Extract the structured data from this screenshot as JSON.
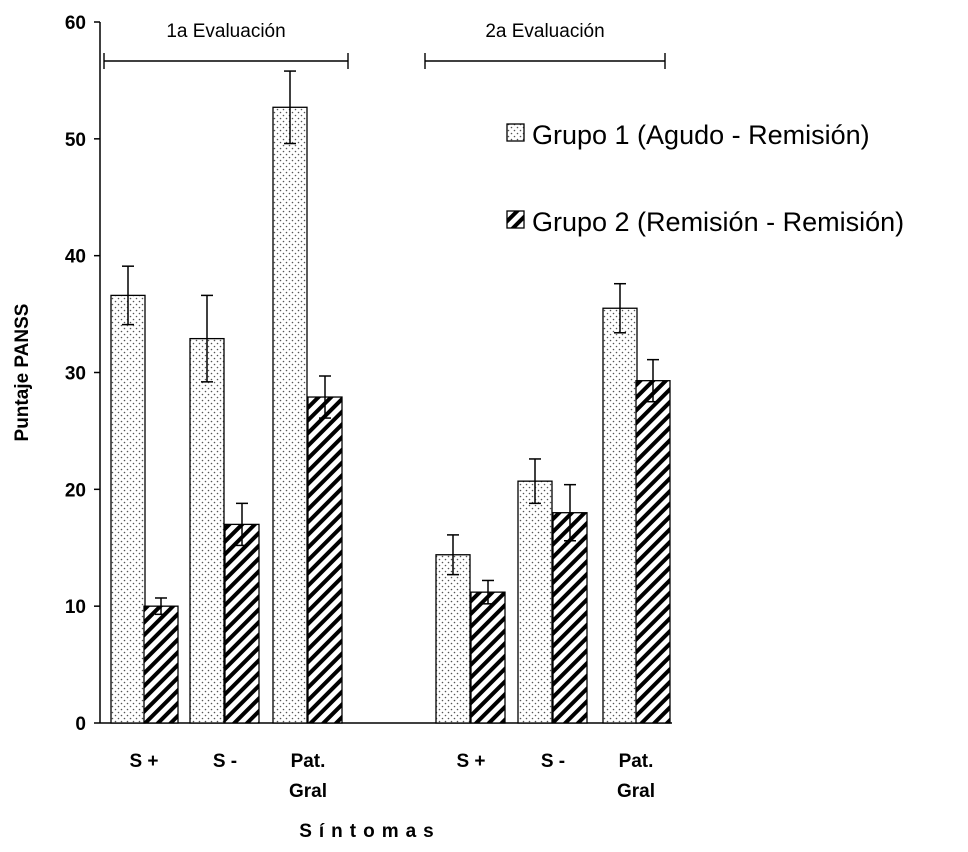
{
  "chart_data": {
    "type": "bar",
    "title": "",
    "ylabel": "Puntaje PANSS",
    "xlabel": "Síntomas",
    "ylim": [
      0,
      60
    ],
    "yticks": [
      0,
      10,
      20,
      30,
      40,
      50,
      60
    ],
    "groups": [
      {
        "label": "1a Evaluación",
        "categories": [
          "S +",
          "S -",
          "Pat.\nGral"
        ]
      },
      {
        "label": "2a Evaluación",
        "categories": [
          "S +",
          "S -",
          "Pat.\nGral"
        ]
      }
    ],
    "series": [
      {
        "name": "Grupo 1 (Agudo - Remisión)",
        "pattern": "dots",
        "values": [
          36.6,
          32.9,
          52.7,
          14.4,
          20.7,
          35.5
        ],
        "error": [
          2.5,
          3.7,
          3.1,
          1.7,
          1.9,
          2.1
        ]
      },
      {
        "name": "Grupo 2 (Remisión - Remisión)",
        "pattern": "hatch",
        "values": [
          10.0,
          17.0,
          27.9,
          11.2,
          18.0,
          29.3
        ],
        "error": [
          0.7,
          1.8,
          1.8,
          1.0,
          2.4,
          1.8
        ]
      }
    ],
    "legend_position": "top-right",
    "grid": false
  }
}
